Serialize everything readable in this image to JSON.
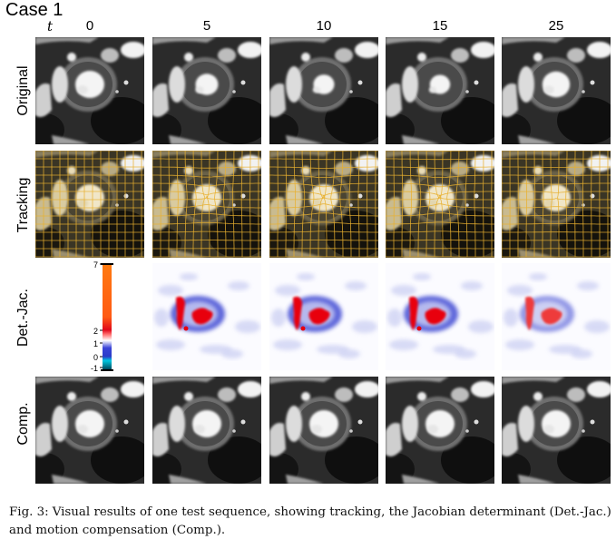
{
  "figure": {
    "case_title": "Case 1",
    "time_symbol": "t",
    "time_points": [
      "0",
      "5",
      "10",
      "15",
      "25"
    ],
    "rows": [
      "Original",
      "Tracking",
      "Det.-Jac.",
      "Comp."
    ],
    "colorbar": {
      "tick_labels": [
        "7",
        "2",
        "1",
        "0",
        "-1"
      ],
      "tick_values": [
        7,
        2,
        1,
        0,
        -1
      ],
      "range": [
        -1,
        7
      ]
    },
    "caption": {
      "label": "Fig. 3:",
      "text": "Visual results of one test sequence, showing tracking, the Jacobian determinant (Det.-Jac.) and motion compensation (Comp.)."
    }
  }
}
